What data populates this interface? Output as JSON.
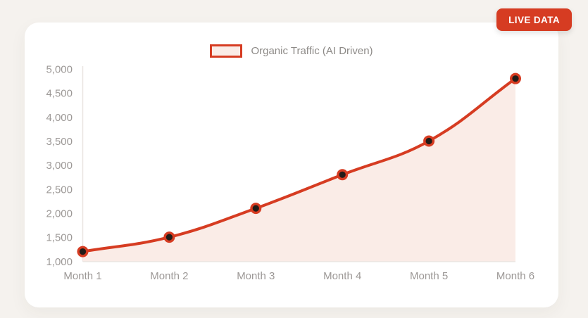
{
  "badge": {
    "label": "LIVE DATA",
    "bg_color": "#d63c22",
    "text_color": "#ffffff"
  },
  "chart_data": {
    "type": "area",
    "title": "",
    "legend_entries": [
      "Organic Traffic (AI Driven)"
    ],
    "legend_position": "top",
    "categories": [
      "Month 1",
      "Month 2",
      "Month 3",
      "Month 4",
      "Month 5",
      "Month 6"
    ],
    "series": [
      {
        "name": "Organic Traffic (AI Driven)",
        "values": [
          1200,
          1500,
          2100,
          2800,
          3500,
          4800
        ]
      }
    ],
    "xlabel": "",
    "ylabel": "",
    "ylim": [
      1000,
      5000
    ],
    "ytick_step": 500,
    "ytick_labels": [
      "1,000",
      "1,500",
      "2,000",
      "2,500",
      "3,000",
      "3,500",
      "4,000",
      "4,500",
      "5,000"
    ],
    "grid": false,
    "colors": {
      "line": "#d63c22",
      "area_fill": "#faece7",
      "point_ring": "#d63c22",
      "point_center": "#211c18",
      "axis_line": "#e9e5e1",
      "tick_text": "#9c9896"
    }
  }
}
